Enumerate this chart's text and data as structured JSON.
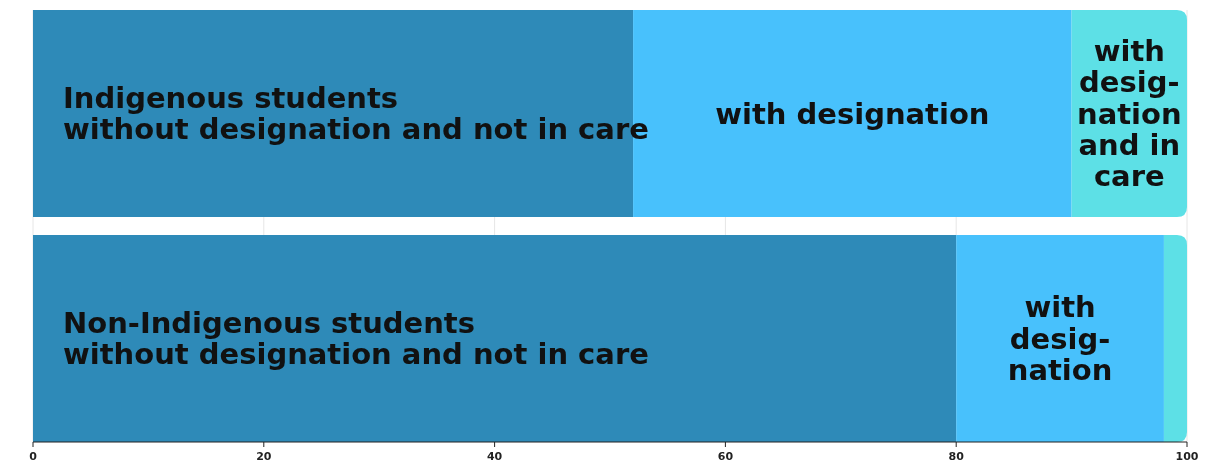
{
  "chart_data": {
    "type": "bar",
    "orientation": "horizontal",
    "stacked": true,
    "categories": [
      null,
      null
    ],
    "series": [
      {
        "color": "#2e8ab8",
        "values": [
          52,
          80
        ]
      },
      {
        "color": "#48c1fc",
        "values": [
          38,
          18
        ]
      },
      {
        "color": "#5de0e6",
        "values": [
          10,
          2
        ]
      }
    ],
    "xlim": [
      0,
      100
    ],
    "xticks": [
      0,
      20,
      40,
      60,
      80,
      100
    ],
    "grid": "x",
    "annotations": [
      "Indigenous students\nwithout designation and not in care",
      "with designation",
      "with\ndesig-\nnation\nand in\ncare",
      "Non-Indigenous students\nwithout designation and not in care",
      "with\ndesig-\nnation"
    ]
  }
}
